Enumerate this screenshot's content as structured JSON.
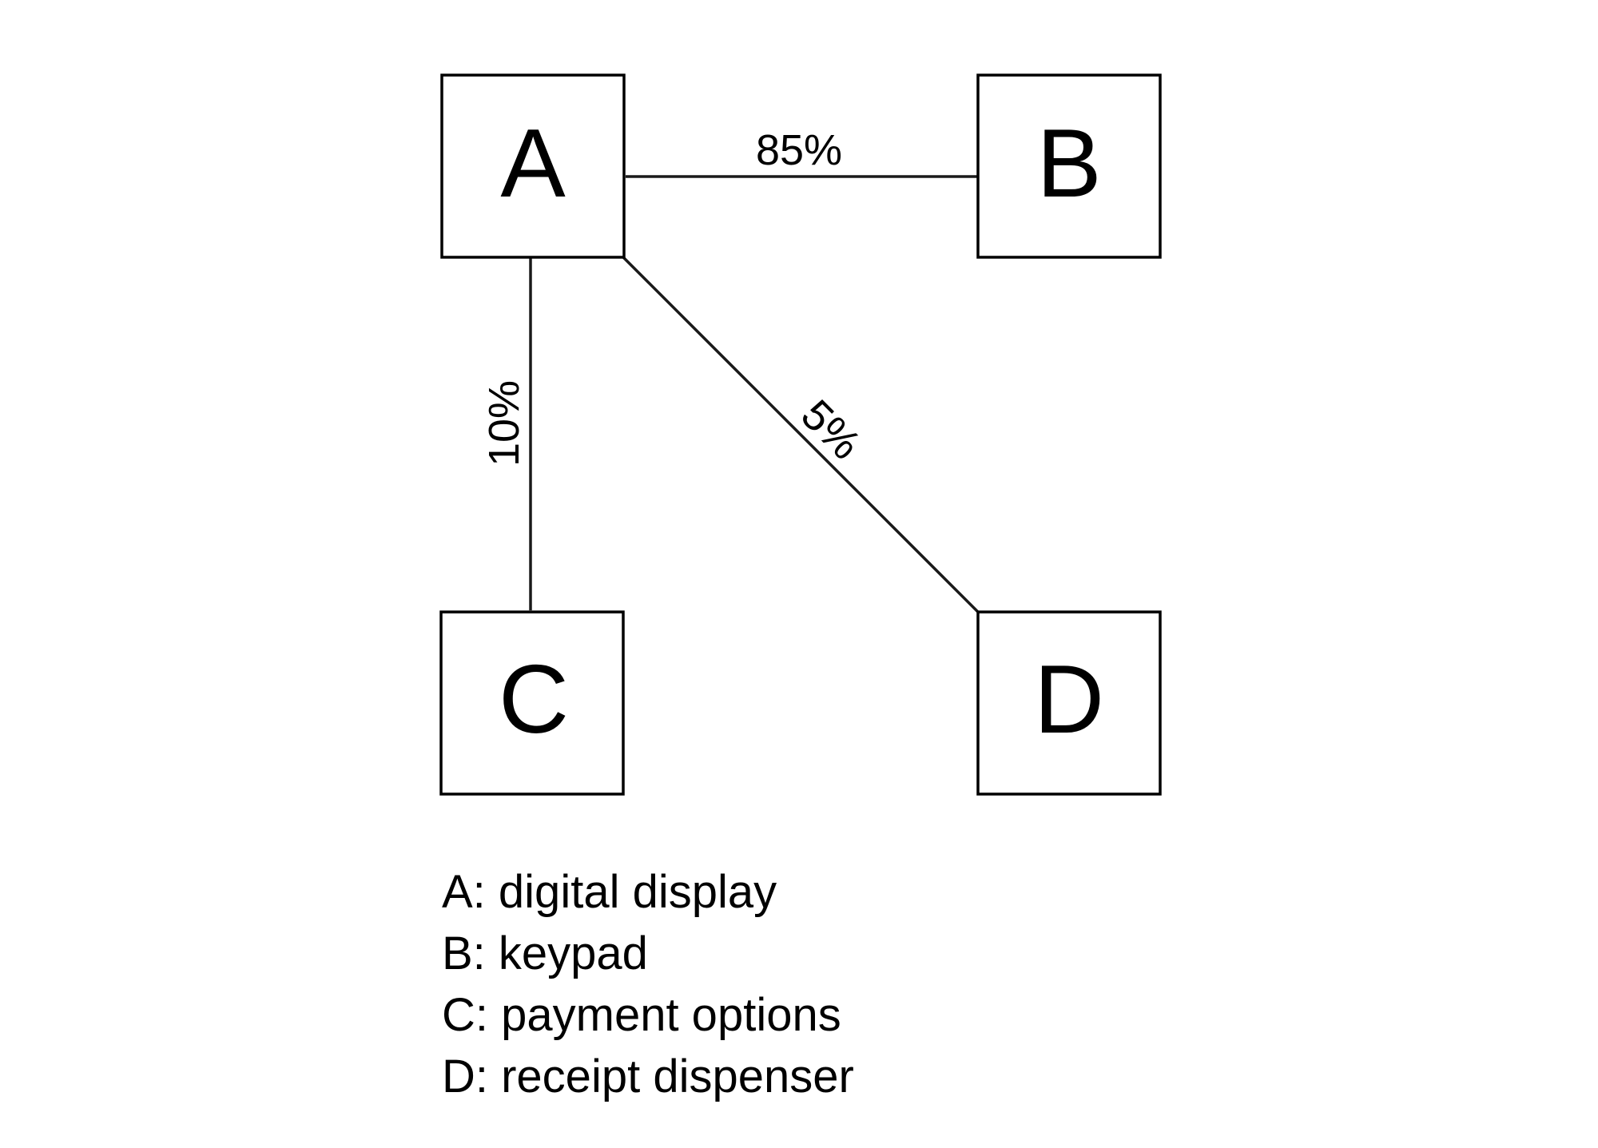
{
  "nodes": [
    {
      "id": "A",
      "label": "A"
    },
    {
      "id": "B",
      "label": "B"
    },
    {
      "id": "C",
      "label": "C"
    },
    {
      "id": "D",
      "label": "D"
    }
  ],
  "edges": [
    {
      "from": "A",
      "to": "B",
      "label": "85%"
    },
    {
      "from": "A",
      "to": "C",
      "label": "10%"
    },
    {
      "from": "A",
      "to": "D",
      "label": "5%"
    }
  ],
  "legend": [
    "A: digital display",
    "B: keypad",
    "C: payment options",
    "D: receipt dispenser"
  ],
  "colors": {
    "stroke": "#000000",
    "background": "#ffffff"
  }
}
